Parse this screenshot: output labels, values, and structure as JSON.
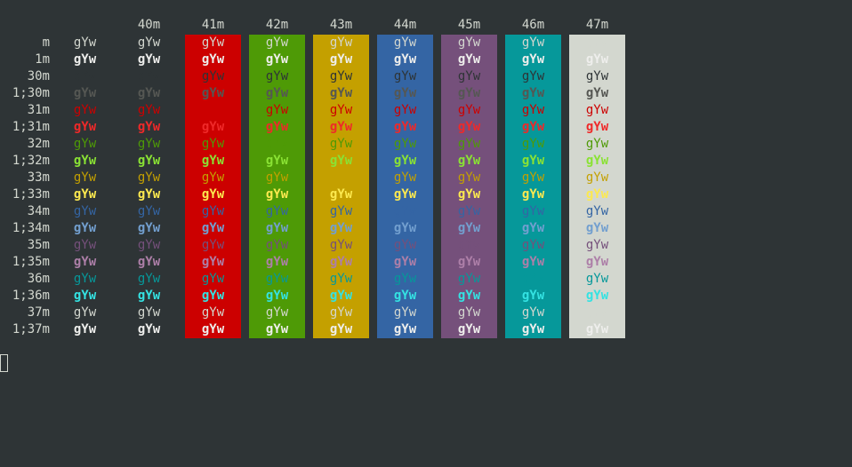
{
  "terminal": {
    "background": "#2e3436",
    "default_fg": "#d3d7cf",
    "sample_text": "gYw",
    "headers": [
      "40m",
      "41m",
      "42m",
      "43m",
      "44m",
      "45m",
      "46m",
      "47m"
    ],
    "columns": [
      {
        "code": "m",
        "bg": null
      },
      {
        "code": "40m",
        "bg": "#2e3436"
      },
      {
        "code": "41m",
        "bg": "#cc0000"
      },
      {
        "code": "42m",
        "bg": "#4e9a06"
      },
      {
        "code": "43m",
        "bg": "#c4a000"
      },
      {
        "code": "44m",
        "bg": "#3465a4"
      },
      {
        "code": "45m",
        "bg": "#75507b"
      },
      {
        "code": "46m",
        "bg": "#06989a"
      },
      {
        "code": "47m",
        "bg": "#d3d7cf"
      }
    ],
    "rows": [
      {
        "label": "m",
        "fg": "#d3d7cf",
        "bold": false
      },
      {
        "label": "1m",
        "fg": "#eeeeec",
        "bold": true
      },
      {
        "label": "30m",
        "fg": "#2e3436",
        "bold": false
      },
      {
        "label": "1;30m",
        "fg": "#555753",
        "bold": true
      },
      {
        "label": "31m",
        "fg": "#cc0000",
        "bold": false
      },
      {
        "label": "1;31m",
        "fg": "#ef2929",
        "bold": true
      },
      {
        "label": "32m",
        "fg": "#4e9a06",
        "bold": false
      },
      {
        "label": "1;32m",
        "fg": "#8ae234",
        "bold": true
      },
      {
        "label": "33m",
        "fg": "#c4a000",
        "bold": false
      },
      {
        "label": "1;33m",
        "fg": "#fce94f",
        "bold": true
      },
      {
        "label": "34m",
        "fg": "#3465a4",
        "bold": false
      },
      {
        "label": "1;34m",
        "fg": "#729fcf",
        "bold": true
      },
      {
        "label": "35m",
        "fg": "#75507b",
        "bold": false
      },
      {
        "label": "1;35m",
        "fg": "#ad7fa8",
        "bold": true
      },
      {
        "label": "36m",
        "fg": "#06989a",
        "bold": false
      },
      {
        "label": "1;36m",
        "fg": "#34e2e2",
        "bold": true
      },
      {
        "label": "37m",
        "fg": "#d3d7cf",
        "bold": false
      },
      {
        "label": "1;37m",
        "fg": "#eeeeec",
        "bold": true
      }
    ]
  }
}
